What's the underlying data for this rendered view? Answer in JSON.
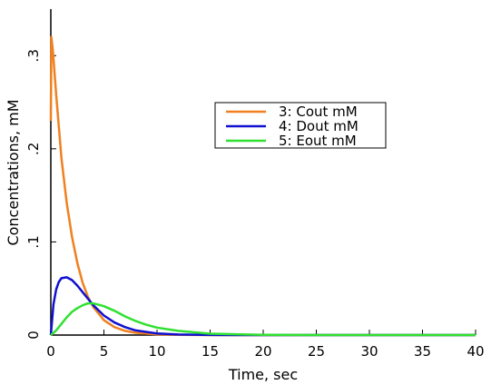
{
  "chart_data": {
    "type": "line",
    "title": "",
    "xlabel": "Time, sec",
    "ylabel": "Concentrations, mM",
    "xlim": [
      0,
      40
    ],
    "ylim": [
      0,
      0.35
    ],
    "xticks": [
      0,
      5,
      10,
      15,
      20,
      25,
      30,
      35,
      40
    ],
    "xtick_labels": [
      "0",
      "5",
      "10",
      "15",
      "20",
      "25",
      "30",
      "35",
      "40"
    ],
    "yticks": [
      0,
      0.1,
      0.2,
      0.3
    ],
    "ytick_labels": [
      "0",
      ".1",
      ".2",
      ".3"
    ],
    "grid": false,
    "legend_position": "upper-right",
    "series": [
      {
        "name": "3: Cout mM",
        "color": "#f08020",
        "x": [
          0,
          0.05,
          0.2,
          0.5,
          1,
          1.5,
          2,
          2.5,
          3,
          3.5,
          4,
          5,
          6,
          7,
          8,
          10,
          12,
          15,
          20,
          40
        ],
        "y": [
          0.23,
          0.32,
          0.305,
          0.258,
          0.19,
          0.142,
          0.105,
          0.077,
          0.056,
          0.041,
          0.03,
          0.016,
          0.0085,
          0.0045,
          0.0024,
          0.0007,
          0.0002,
          0.0,
          0.0,
          0.0
        ]
      },
      {
        "name": "4: Dout mM",
        "color": "#1010d0",
        "x": [
          0,
          0.25,
          0.5,
          0.75,
          1,
          1.5,
          2,
          2.5,
          3,
          3.5,
          4,
          5,
          6,
          7,
          8,
          10,
          12,
          15,
          20,
          40
        ],
        "y": [
          0.0,
          0.033,
          0.049,
          0.057,
          0.061,
          0.062,
          0.059,
          0.053,
          0.046,
          0.039,
          0.032,
          0.021,
          0.0135,
          0.0085,
          0.005,
          0.0018,
          0.0006,
          0.0001,
          0.0,
          0.0
        ]
      },
      {
        "name": "5: Eout mM",
        "color": "#30e030",
        "x": [
          0,
          0.5,
          1,
          1.5,
          2,
          2.5,
          3,
          3.5,
          4,
          5,
          6,
          7,
          8,
          9,
          10,
          12,
          15,
          20,
          25,
          40
        ],
        "y": [
          0.0,
          0.005,
          0.012,
          0.019,
          0.025,
          0.029,
          0.032,
          0.034,
          0.034,
          0.031,
          0.026,
          0.02,
          0.015,
          0.011,
          0.008,
          0.0045,
          0.0015,
          0.0002,
          0.0,
          0.0
        ]
      }
    ]
  }
}
